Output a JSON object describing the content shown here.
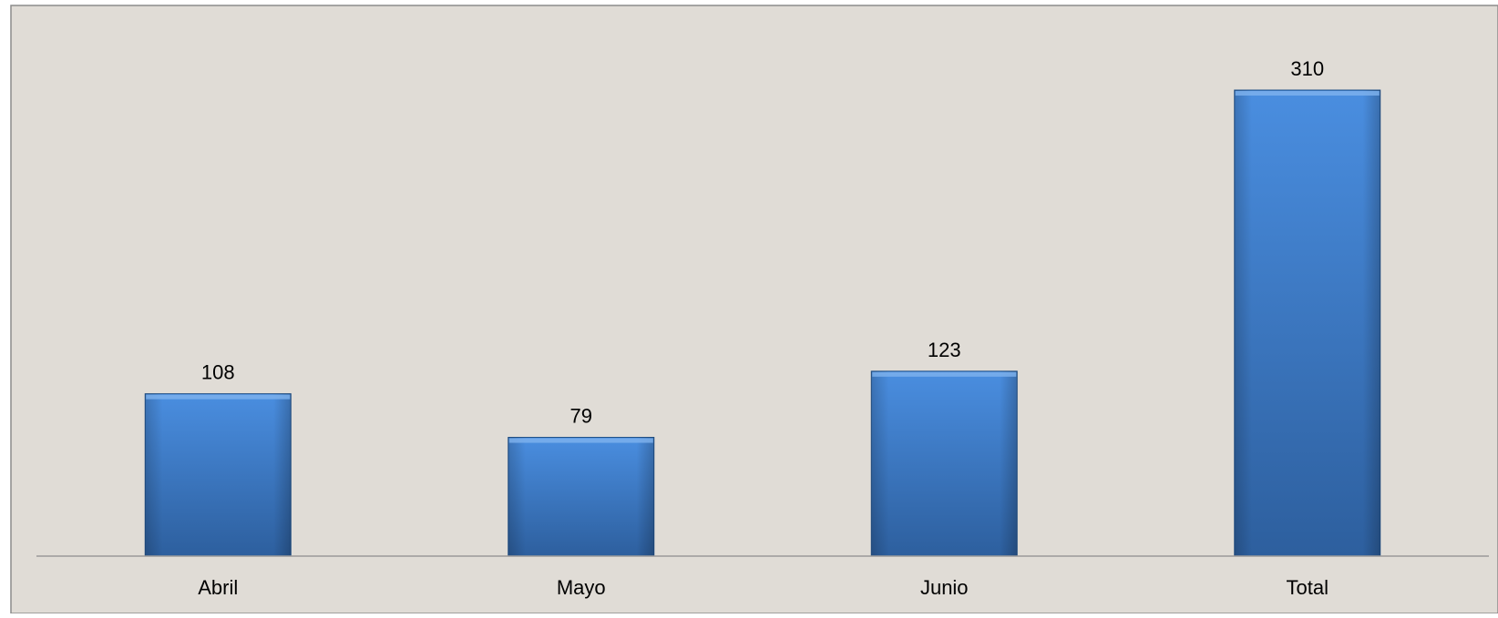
{
  "chart_data": {
    "type": "bar",
    "title": "",
    "xlabel": "",
    "ylabel": "",
    "categories": [
      "Abril",
      "Mayo",
      "Junio",
      "Total"
    ],
    "series": [
      {
        "values": [
          108,
          79,
          123,
          310
        ]
      }
    ],
    "data_labels": [
      "108",
      "79",
      "123",
      "310"
    ],
    "ylim": [
      0,
      330
    ],
    "grid": false,
    "legend": "none",
    "colors": {
      "background": "#e0dcd6",
      "border": "#8c8c8c",
      "axis": "#9a9a9a",
      "bar_top": "#4a8ee0",
      "bar_bottom": "#2d5f9e",
      "bar_edge": "#1f4f86"
    }
  }
}
